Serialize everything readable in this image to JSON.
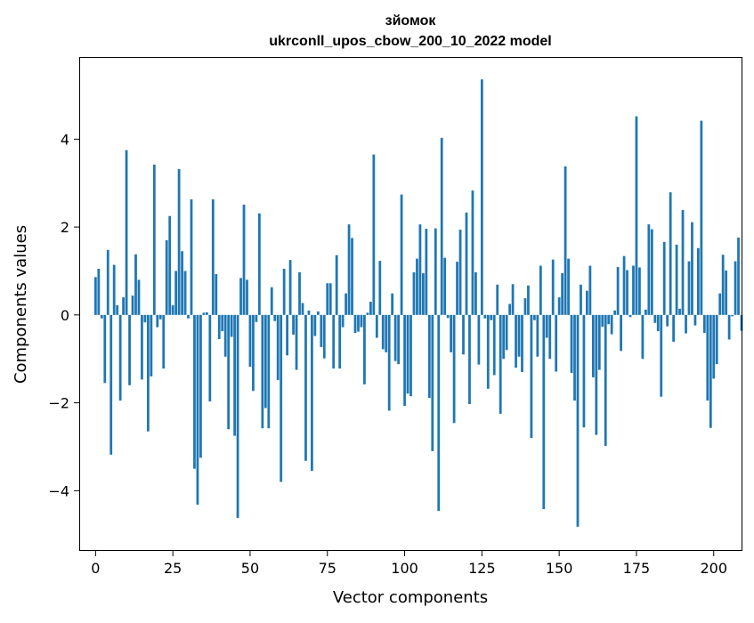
{
  "chart_data": {
    "type": "bar",
    "title": "зйомок",
    "subtitle": "ukrconll_upos_cbow_200_10_2022 model",
    "xlabel": "Vector components",
    "ylabel": "Components values",
    "xlim": [
      -5,
      209
    ],
    "ylim": [
      -5.35,
      5.85
    ],
    "xticks": [
      0,
      25,
      50,
      75,
      100,
      125,
      150,
      175,
      200
    ],
    "yticks": [
      -4,
      -2,
      0,
      2,
      4
    ],
    "ytick_labels": [
      "−4",
      "−2",
      "0",
      "2",
      "4"
    ],
    "bar_color": "#1f77b4",
    "grid": false,
    "values": [
      0.86,
      1.05,
      -0.08,
      -1.55,
      1.48,
      -3.18,
      1.14,
      0.22,
      -1.95,
      0.4,
      3.75,
      -1.6,
      0.44,
      1.38,
      0.8,
      -1.47,
      -0.17,
      -2.65,
      -1.4,
      3.42,
      -0.28,
      -0.1,
      -1.22,
      1.7,
      2.25,
      0.22,
      1.0,
      3.32,
      1.45,
      1.0,
      -0.08,
      2.63,
      -3.5,
      -4.32,
      -3.25,
      0.05,
      0.06,
      -1.97,
      2.63,
      0.93,
      -0.55,
      -0.37,
      -0.95,
      -2.6,
      -0.5,
      -2.75,
      -4.62,
      0.84,
      2.51,
      0.8,
      -1.18,
      -1.73,
      -0.16,
      2.31,
      -2.58,
      -2.12,
      -2.58,
      0.63,
      -0.14,
      -1.48,
      -3.8,
      1.05,
      -0.92,
      1.25,
      -0.45,
      -1.25,
      0.97,
      0.27,
      -3.32,
      0.1,
      -3.55,
      -0.48,
      0.08,
      -0.73,
      -0.99,
      0.72,
      0.72,
      -1.22,
      1.36,
      -1.22,
      -0.28,
      0.49,
      2.06,
      1.75,
      -0.41,
      -0.38,
      -0.28,
      -1.58,
      0.05,
      0.3,
      3.65,
      -0.52,
      1.23,
      -0.78,
      -0.85,
      -2.18,
      0.49,
      -1.05,
      -1.12,
      2.74,
      -2.07,
      -1.79,
      -1.85,
      0.97,
      1.28,
      2.06,
      0.95,
      1.96,
      -1.89,
      -3.1,
      1.97,
      -4.46,
      4.03,
      1.3,
      -0.07,
      -0.85,
      -2.46,
      1.21,
      1.94,
      -0.9,
      2.33,
      -2.03,
      2.83,
      0.97,
      -1.13,
      5.36,
      -0.08,
      -1.68,
      -0.12,
      -1.37,
      0.69,
      -2.25,
      -1.0,
      -0.8,
      0.25,
      0.7,
      -1.2,
      -0.95,
      -1.3,
      0.38,
      0.67,
      -2.8,
      -0.12,
      -0.95,
      1.12,
      -4.42,
      -0.52,
      -1.0,
      1.26,
      -1.29,
      0.4,
      0.95,
      3.38,
      1.28,
      -1.32,
      -1.95,
      -4.82,
      0.69,
      -2.56,
      0.55,
      1.12,
      -1.42,
      -2.73,
      -1.25,
      -0.27,
      -2.98,
      -0.21,
      -0.44,
      0.1,
      1.09,
      -0.82,
      1.34,
      1.02,
      -0.05,
      1.12,
      4.52,
      1.08,
      -1.0,
      0.12,
      2.06,
      1.95,
      -0.18,
      -0.37,
      -1.86,
      1.66,
      -0.26,
      2.79,
      -0.61,
      1.6,
      0.14,
      2.39,
      -0.42,
      1.22,
      2.11,
      -0.24,
      1.52,
      4.42,
      -0.41,
      -1.95,
      -2.57,
      -1.45,
      -1.12,
      0.49,
      1.37,
      1.01,
      -0.56,
      -0.03,
      1.22,
      1.76,
      -0.36
    ]
  }
}
